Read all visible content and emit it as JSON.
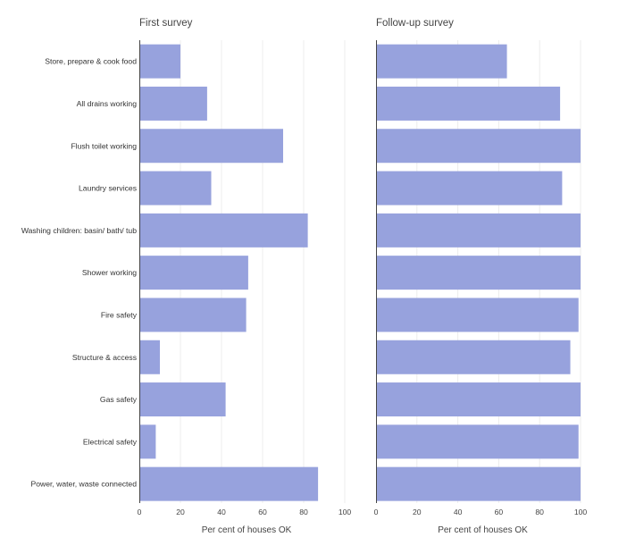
{
  "chart_data": [
    {
      "type": "bar",
      "orientation": "horizontal",
      "title": "First survey",
      "xlabel": "Per cent of houses OK",
      "xlim": [
        0,
        100
      ],
      "xticks": [
        0,
        20,
        40,
        60,
        80,
        100
      ],
      "grid": true,
      "bar_color": "#97a2dd",
      "categories": [
        "Store, prepare & cook food",
        "All drains working",
        "Flush toilet working",
        "Laundry services",
        "Washing children: basin/ bath/ tub",
        "Shower working",
        "Fire safety",
        "Structure & access",
        "Gas safety",
        "Electrical safety",
        "Power, water, waste connected"
      ],
      "values": [
        20,
        33,
        70,
        35,
        82,
        53,
        52,
        10,
        42,
        8,
        87
      ]
    },
    {
      "type": "bar",
      "orientation": "horizontal",
      "title": "Follow-up survey",
      "xlabel": "Per cent of houses OK",
      "xlim": [
        0,
        100
      ],
      "xticks": [
        0,
        20,
        40,
        60,
        80,
        100
      ],
      "grid": true,
      "bar_color": "#97a2dd",
      "categories": [
        "Store, prepare & cook food",
        "All drains working",
        "Flush toilet working",
        "Laundry services",
        "Washing children: basin/ bath/ tub",
        "Shower working",
        "Fire safety",
        "Structure & access",
        "Gas safety",
        "Electrical safety",
        "Power, water, waste connected"
      ],
      "values": [
        64,
        90,
        100,
        91,
        100,
        100,
        99,
        95,
        100,
        99,
        100
      ]
    }
  ]
}
